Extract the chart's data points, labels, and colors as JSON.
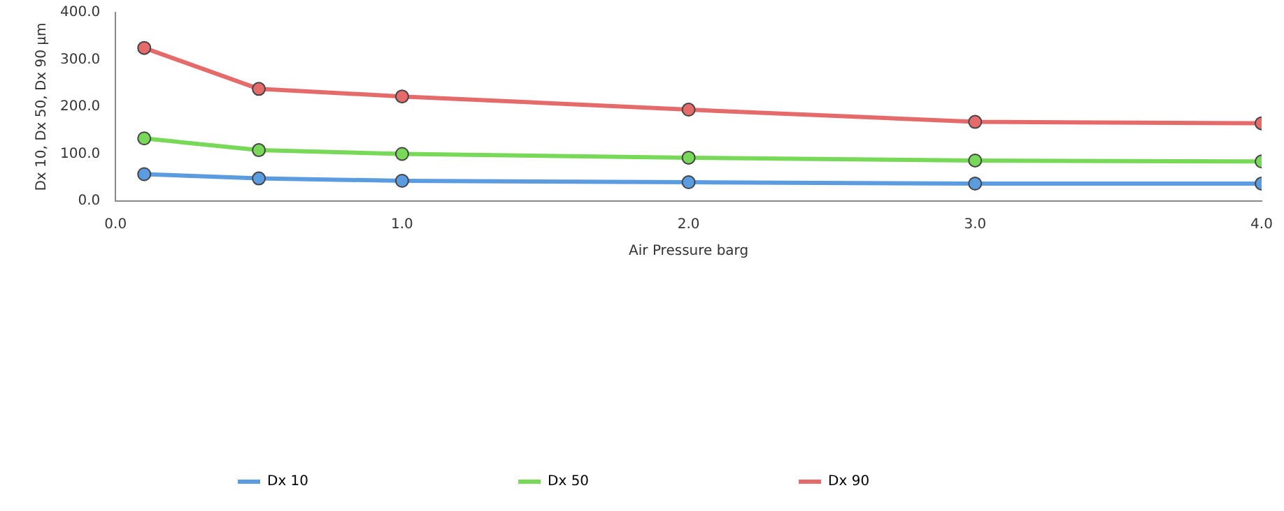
{
  "chart_data": {
    "type": "line",
    "xlabel": "Air Pressure barg",
    "ylabel": "Dx 10, Dx 50, Dx 90 µm",
    "x": [
      0.1,
      0.5,
      1.0,
      2.0,
      3.0,
      4.0
    ],
    "series": [
      {
        "name": "Dx 10",
        "color": "#5b9be0",
        "values": [
          57,
          48,
          43,
          40,
          37,
          37
        ]
      },
      {
        "name": "Dx 50",
        "color": "#77d957",
        "values": [
          133,
          108,
          100,
          92,
          86,
          84
        ]
      },
      {
        "name": "Dx 90",
        "color": "#e56b6b",
        "values": [
          325,
          238,
          222,
          194,
          168,
          165
        ]
      }
    ],
    "xlim": [
      0,
      4
    ],
    "xticks": [
      {
        "value": 0,
        "label": "0.0"
      },
      {
        "value": 1,
        "label": "1.0"
      },
      {
        "value": 2,
        "label": "2.0"
      },
      {
        "value": 3,
        "label": "3.0"
      },
      {
        "value": 4,
        "label": "4.0"
      }
    ],
    "ylim": [
      0,
      400
    ],
    "yticks": [
      {
        "value": 0,
        "label": "0.0"
      },
      {
        "value": 100,
        "label": "100.0"
      },
      {
        "value": 200,
        "label": "200.0"
      },
      {
        "value": 300,
        "label": "300.0"
      },
      {
        "value": 400,
        "label": "400.0"
      }
    ],
    "grid": false,
    "legend": "bottom left",
    "marker": "circle",
    "line_style": "solid"
  }
}
